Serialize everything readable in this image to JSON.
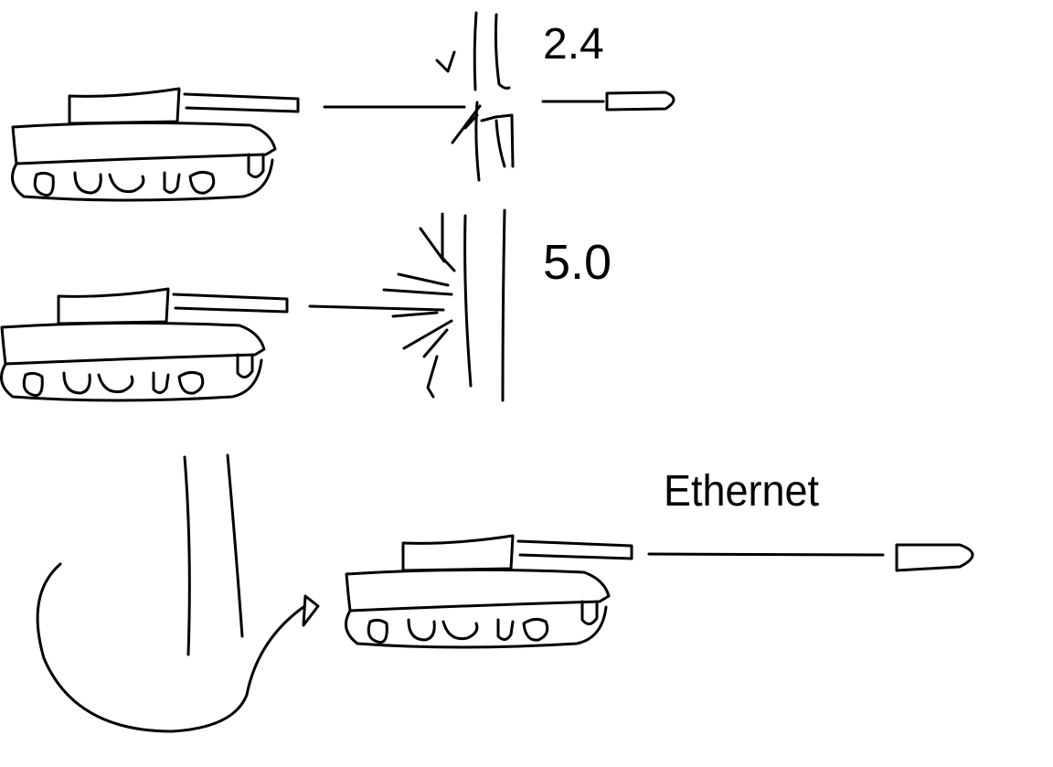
{
  "labels": {
    "band_24": "2.4",
    "band_50": "5.0",
    "wired": "Ethernet"
  },
  "colors": {
    "stroke": "#000000",
    "background": "#ffffff"
  }
}
